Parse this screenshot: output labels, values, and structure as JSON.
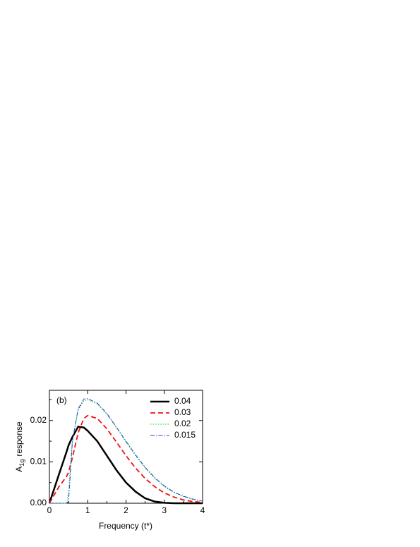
{
  "chart_data": {
    "type": "line",
    "annotation": "(b)",
    "xlabel": "Frequency (t*)",
    "ylabel": {
      "main": "A",
      "sub": "1g",
      "rest": "response"
    },
    "x": [
      0,
      0.25,
      0.45,
      0.5,
      0.6,
      0.75,
      0.9,
      1.0,
      1.25,
      1.5,
      1.75,
      2.0,
      2.25,
      2.5,
      2.75,
      3.0,
      3.25,
      3.5,
      3.75,
      4.0
    ],
    "series": [
      {
        "name": "0.04",
        "color": "#000000",
        "dash": "solid",
        "width": 2.5,
        "values": [
          0,
          0.007,
          0.0125,
          0.014,
          0.016,
          0.0185,
          0.0183,
          0.0175,
          0.015,
          0.0115,
          0.008,
          0.005,
          0.0028,
          0.0012,
          0.0004,
          0.0001,
          0,
          0,
          0,
          0
        ]
      },
      {
        "name": "0.03",
        "color": "#ee1111",
        "dash": "dashed",
        "width": 1.8,
        "values": [
          0,
          0.004,
          0.0065,
          0.0075,
          0.011,
          0.017,
          0.0205,
          0.0212,
          0.0205,
          0.018,
          0.0148,
          0.0115,
          0.0085,
          0.006,
          0.004,
          0.0025,
          0.0015,
          0.0008,
          0.0004,
          0.0002
        ]
      },
      {
        "name": "0.02",
        "color": "#22cc44",
        "dash": "dotted",
        "width": 1,
        "values": [
          0,
          0,
          0,
          0.003,
          0.015,
          0.0225,
          0.0248,
          0.025,
          0.024,
          0.0215,
          0.0182,
          0.0148,
          0.0115,
          0.0085,
          0.006,
          0.004,
          0.0026,
          0.0016,
          0.0009,
          0.0005
        ]
      },
      {
        "name": "0.015",
        "color": "#2244cc",
        "dash": "dashdot",
        "width": 1,
        "values": [
          0,
          0,
          0,
          0.0005,
          0.015,
          0.0228,
          0.0252,
          0.0253,
          0.0242,
          0.0217,
          0.0184,
          0.015,
          0.0117,
          0.0087,
          0.0062,
          0.0042,
          0.0027,
          0.0017,
          0.001,
          0.0005
        ]
      }
    ],
    "xlim": [
      0,
      4
    ],
    "xticks": [
      0,
      1,
      2,
      3,
      4
    ],
    "ylim": [
      0,
      0.0273
    ],
    "yticks": [
      {
        "value": 0,
        "label": "0.00"
      },
      0.01,
      0.02
    ],
    "legend": "upper-right"
  }
}
